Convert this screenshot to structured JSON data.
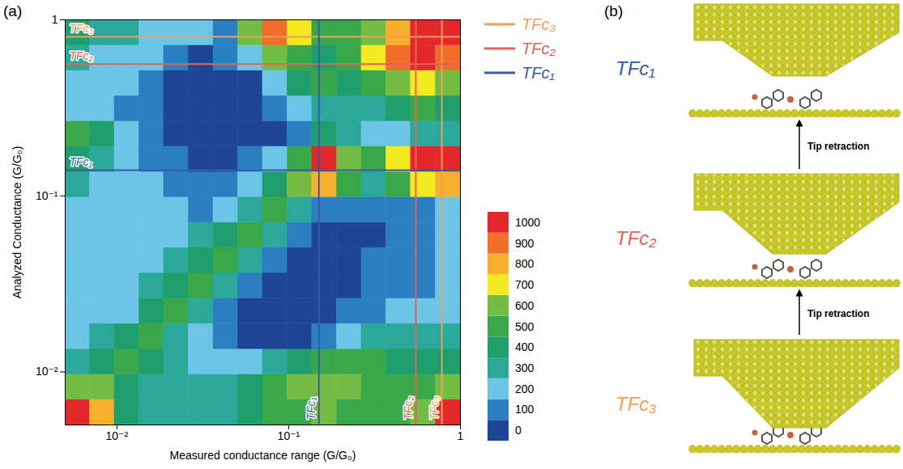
{
  "chart_data": {
    "type": "heatmap",
    "panel_label": "(a)",
    "x_label": "Measured conductance range (G/G₀)",
    "y_label": "Analyzed Conductance (G/G₀)",
    "log": true,
    "xlim": [
      0.005,
      1
    ],
    "ylim": [
      0.005,
      1
    ],
    "xticks": [
      {
        "value": 0.01,
        "label": "10⁻²"
      },
      {
        "value": 0.1,
        "label": "10⁻¹"
      },
      1
    ],
    "yticks": [
      {
        "value": 0.01,
        "label": "10⁻²"
      },
      {
        "value": 0.1,
        "label": "10⁻¹"
      },
      1
    ],
    "x_edges": [
      0.005,
      0.00697,
      0.0097,
      0.0135,
      0.0188,
      0.0262,
      0.0365,
      0.0508,
      0.0707,
      0.0985,
      0.137,
      0.191,
      0.266,
      0.37,
      0.515,
      0.718,
      1
    ],
    "y_edges": [
      0.005,
      0.00697,
      0.0097,
      0.0135,
      0.0188,
      0.0262,
      0.0365,
      0.0508,
      0.0707,
      0.0985,
      0.137,
      0.191,
      0.266,
      0.37,
      0.515,
      0.718,
      1
    ],
    "cells": [
      [
        1000,
        800,
        400,
        300,
        300,
        300,
        300,
        400,
        500,
        500,
        600,
        500,
        500,
        500,
        600,
        1000
      ],
      [
        600,
        600,
        400,
        300,
        300,
        300,
        300,
        400,
        500,
        600,
        600,
        600,
        500,
        500,
        500,
        600
      ],
      [
        300,
        400,
        500,
        400,
        300,
        200,
        200,
        200,
        300,
        400,
        500,
        500,
        500,
        400,
        400,
        400
      ],
      [
        250,
        300,
        400,
        500,
        300,
        200,
        100,
        50,
        50,
        50,
        100,
        200,
        300,
        300,
        300,
        300
      ],
      [
        200,
        200,
        250,
        400,
        500,
        300,
        150,
        50,
        0,
        0,
        50,
        100,
        150,
        200,
        200,
        250
      ],
      [
        200,
        200,
        200,
        300,
        400,
        500,
        300,
        100,
        0,
        0,
        0,
        50,
        100,
        150,
        150,
        200
      ],
      [
        200,
        200,
        200,
        200,
        300,
        400,
        500,
        300,
        100,
        0,
        0,
        50,
        100,
        100,
        100,
        200
      ],
      [
        200,
        200,
        200,
        200,
        200,
        300,
        400,
        500,
        300,
        100,
        50,
        50,
        50,
        100,
        100,
        200
      ],
      [
        200,
        200,
        200,
        200,
        200,
        150,
        200,
        300,
        500,
        300,
        100,
        100,
        100,
        100,
        150,
        200
      ],
      [
        300,
        250,
        200,
        200,
        150,
        100,
        100,
        200,
        400,
        600,
        800,
        500,
        300,
        500,
        700,
        800
      ],
      [
        400,
        300,
        200,
        150,
        100,
        50,
        50,
        100,
        200,
        500,
        1000,
        600,
        500,
        700,
        1000,
        1000
      ],
      [
        500,
        400,
        200,
        100,
        50,
        0,
        0,
        0,
        50,
        150,
        400,
        300,
        200,
        200,
        300,
        300
      ],
      [
        250,
        200,
        150,
        100,
        0,
        0,
        0,
        0,
        100,
        200,
        300,
        300,
        300,
        400,
        500,
        400
      ],
      [
        200,
        200,
        200,
        100,
        50,
        0,
        0,
        50,
        200,
        400,
        500,
        400,
        500,
        600,
        700,
        600
      ],
      [
        300,
        250,
        250,
        200,
        100,
        50,
        100,
        200,
        600,
        500,
        400,
        500,
        700,
        900,
        1000,
        900
      ],
      [
        400,
        350,
        300,
        200,
        200,
        200,
        150,
        600,
        900,
        700,
        500,
        500,
        600,
        800,
        1000,
        1000
      ]
    ],
    "colorbar": {
      "range": [
        0,
        1000
      ],
      "ticks": [
        0,
        100,
        200,
        300,
        400,
        500,
        600,
        700,
        800,
        900,
        1000
      ],
      "colors": [
        "#1e4597",
        "#2b7fc1",
        "#6cc4e6",
        "#2aa89a",
        "#1f9e6e",
        "#3aa84a",
        "#74bd45",
        "#f4ea22",
        "#f6b02e",
        "#ef6f2a",
        "#e3282b"
      ]
    },
    "legend": "right",
    "series": [
      {
        "name": "TFc₃",
        "color": "#f0a058",
        "x": 0.78,
        "y": 0.8
      },
      {
        "name": "TFc₂",
        "color": "#e0645a",
        "x": 0.55,
        "y": 0.56
      },
      {
        "name": "TFc₁",
        "color": "#3a5aa8",
        "x": 0.15,
        "y": 0.14
      }
    ]
  },
  "diagram": {
    "panel_label": "(b)",
    "states": [
      "TFc₁",
      "TFc₂",
      "TFc₃"
    ],
    "arrow_label": "Tip retraction"
  }
}
